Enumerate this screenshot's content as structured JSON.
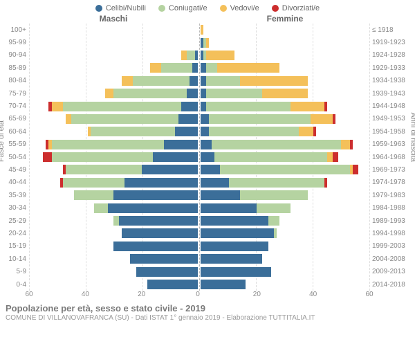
{
  "legend": {
    "items": [
      {
        "label": "Celibi/Nubili",
        "color": "#3b6e99"
      },
      {
        "label": "Coniugati/e",
        "color": "#b5d3a1"
      },
      {
        "label": "Vedovi/e",
        "color": "#f4c05a"
      },
      {
        "label": "Divorziati/e",
        "color": "#cc2e2e"
      }
    ]
  },
  "headers": {
    "maschi": "Maschi",
    "femmine": "Femmine"
  },
  "yaxis_left_title": "Fasce di età",
  "yaxis_right_title": "Anni di nascita",
  "chart": {
    "type": "population-pyramid",
    "xmax": 60,
    "xticks": [
      60,
      40,
      20,
      0,
      20,
      40,
      60
    ],
    "colors": {
      "celibi": "#3b6e99",
      "coniugati": "#b5d3a1",
      "vedovi": "#f4c05a",
      "divorziati": "#cc2e2e",
      "grid": "#dddddd",
      "center": "#bbbbbb",
      "background": "#ffffff",
      "text": "#888888"
    },
    "rows": [
      {
        "age": "100+",
        "birth": "≤ 1918",
        "m": {
          "celibi": 0,
          "coniugati": 0,
          "vedovi": 0,
          "divorziati": 0
        },
        "f": {
          "celibi": 0,
          "coniugati": 0,
          "vedovi": 1,
          "divorziati": 0
        }
      },
      {
        "age": "95-99",
        "birth": "1919-1923",
        "m": {
          "celibi": 0,
          "coniugati": 0,
          "vedovi": 0,
          "divorziati": 0
        },
        "f": {
          "celibi": 1,
          "coniugati": 1,
          "vedovi": 1,
          "divorziati": 0
        }
      },
      {
        "age": "90-94",
        "birth": "1924-1928",
        "m": {
          "celibi": 1,
          "coniugati": 3,
          "vedovi": 2,
          "divorziati": 0
        },
        "f": {
          "celibi": 1,
          "coniugati": 1,
          "vedovi": 10,
          "divorziati": 0
        }
      },
      {
        "age": "85-89",
        "birth": "1929-1933",
        "m": {
          "celibi": 2,
          "coniugati": 11,
          "vedovi": 4,
          "divorziati": 0
        },
        "f": {
          "celibi": 2,
          "coniugati": 4,
          "vedovi": 22,
          "divorziati": 0
        }
      },
      {
        "age": "80-84",
        "birth": "1934-1938",
        "m": {
          "celibi": 3,
          "coniugati": 20,
          "vedovi": 4,
          "divorziati": 0
        },
        "f": {
          "celibi": 2,
          "coniugati": 12,
          "vedovi": 24,
          "divorziati": 0
        }
      },
      {
        "age": "75-79",
        "birth": "1939-1943",
        "m": {
          "celibi": 4,
          "coniugati": 26,
          "vedovi": 3,
          "divorziati": 0
        },
        "f": {
          "celibi": 2,
          "coniugati": 20,
          "vedovi": 16,
          "divorziati": 0
        }
      },
      {
        "age": "70-74",
        "birth": "1944-1948",
        "m": {
          "celibi": 6,
          "coniugati": 42,
          "vedovi": 4,
          "divorziati": 1
        },
        "f": {
          "celibi": 2,
          "coniugati": 30,
          "vedovi": 12,
          "divorziati": 1
        }
      },
      {
        "age": "65-69",
        "birth": "1949-1953",
        "m": {
          "celibi": 7,
          "coniugati": 38,
          "vedovi": 2,
          "divorziati": 0
        },
        "f": {
          "celibi": 3,
          "coniugati": 36,
          "vedovi": 8,
          "divorziati": 1
        }
      },
      {
        "age": "60-64",
        "birth": "1954-1958",
        "m": {
          "celibi": 8,
          "coniugati": 30,
          "vedovi": 1,
          "divorziati": 0
        },
        "f": {
          "celibi": 3,
          "coniugati": 32,
          "vedovi": 5,
          "divorziati": 1
        }
      },
      {
        "age": "55-59",
        "birth": "1959-1963",
        "m": {
          "celibi": 12,
          "coniugati": 40,
          "vedovi": 1,
          "divorziati": 1
        },
        "f": {
          "celibi": 4,
          "coniugati": 46,
          "vedovi": 3,
          "divorziati": 1
        }
      },
      {
        "age": "50-54",
        "birth": "1964-1968",
        "m": {
          "celibi": 16,
          "coniugati": 36,
          "vedovi": 0,
          "divorziati": 3
        },
        "f": {
          "celibi": 5,
          "coniugati": 40,
          "vedovi": 2,
          "divorziati": 2
        }
      },
      {
        "age": "45-49",
        "birth": "1969-1973",
        "m": {
          "celibi": 20,
          "coniugati": 27,
          "vedovi": 0,
          "divorziati": 1
        },
        "f": {
          "celibi": 7,
          "coniugati": 46,
          "vedovi": 1,
          "divorziati": 2
        }
      },
      {
        "age": "40-44",
        "birth": "1974-1978",
        "m": {
          "celibi": 26,
          "coniugati": 22,
          "vedovi": 0,
          "divorziati": 1
        },
        "f": {
          "celibi": 10,
          "coniugati": 34,
          "vedovi": 0,
          "divorziati": 1
        }
      },
      {
        "age": "35-39",
        "birth": "1979-1983",
        "m": {
          "celibi": 30,
          "coniugati": 14,
          "vedovi": 0,
          "divorziati": 0
        },
        "f": {
          "celibi": 14,
          "coniugati": 24,
          "vedovi": 0,
          "divorziati": 0
        }
      },
      {
        "age": "30-34",
        "birth": "1984-1988",
        "m": {
          "celibi": 32,
          "coniugati": 5,
          "vedovi": 0,
          "divorziati": 0
        },
        "f": {
          "celibi": 20,
          "coniugati": 12,
          "vedovi": 0,
          "divorziati": 0
        }
      },
      {
        "age": "25-29",
        "birth": "1989-1993",
        "m": {
          "celibi": 28,
          "coniugati": 2,
          "vedovi": 0,
          "divorziati": 0
        },
        "f": {
          "celibi": 24,
          "coniugati": 4,
          "vedovi": 0,
          "divorziati": 0
        }
      },
      {
        "age": "20-24",
        "birth": "1994-1998",
        "m": {
          "celibi": 27,
          "coniugati": 0,
          "vedovi": 0,
          "divorziati": 0
        },
        "f": {
          "celibi": 26,
          "coniugati": 1,
          "vedovi": 0,
          "divorziati": 0
        }
      },
      {
        "age": "15-19",
        "birth": "1999-2003",
        "m": {
          "celibi": 30,
          "coniugati": 0,
          "vedovi": 0,
          "divorziati": 0
        },
        "f": {
          "celibi": 24,
          "coniugati": 0,
          "vedovi": 0,
          "divorziati": 0
        }
      },
      {
        "age": "10-14",
        "birth": "2004-2008",
        "m": {
          "celibi": 24,
          "coniugati": 0,
          "vedovi": 0,
          "divorziati": 0
        },
        "f": {
          "celibi": 22,
          "coniugati": 0,
          "vedovi": 0,
          "divorziati": 0
        }
      },
      {
        "age": "5-9",
        "birth": "2009-2013",
        "m": {
          "celibi": 22,
          "coniugati": 0,
          "vedovi": 0,
          "divorziati": 0
        },
        "f": {
          "celibi": 25,
          "coniugati": 0,
          "vedovi": 0,
          "divorziati": 0
        }
      },
      {
        "age": "0-4",
        "birth": "2014-2018",
        "m": {
          "celibi": 18,
          "coniugati": 0,
          "vedovi": 0,
          "divorziati": 0
        },
        "f": {
          "celibi": 16,
          "coniugati": 0,
          "vedovi": 0,
          "divorziati": 0
        }
      }
    ]
  },
  "footer": {
    "title": "Popolazione per età, sesso e stato civile - 2019",
    "subtitle": "COMUNE DI VILLANOVAFRANCA (SU) - Dati ISTAT 1° gennaio 2019 - Elaborazione TUTTITALIA.IT"
  }
}
